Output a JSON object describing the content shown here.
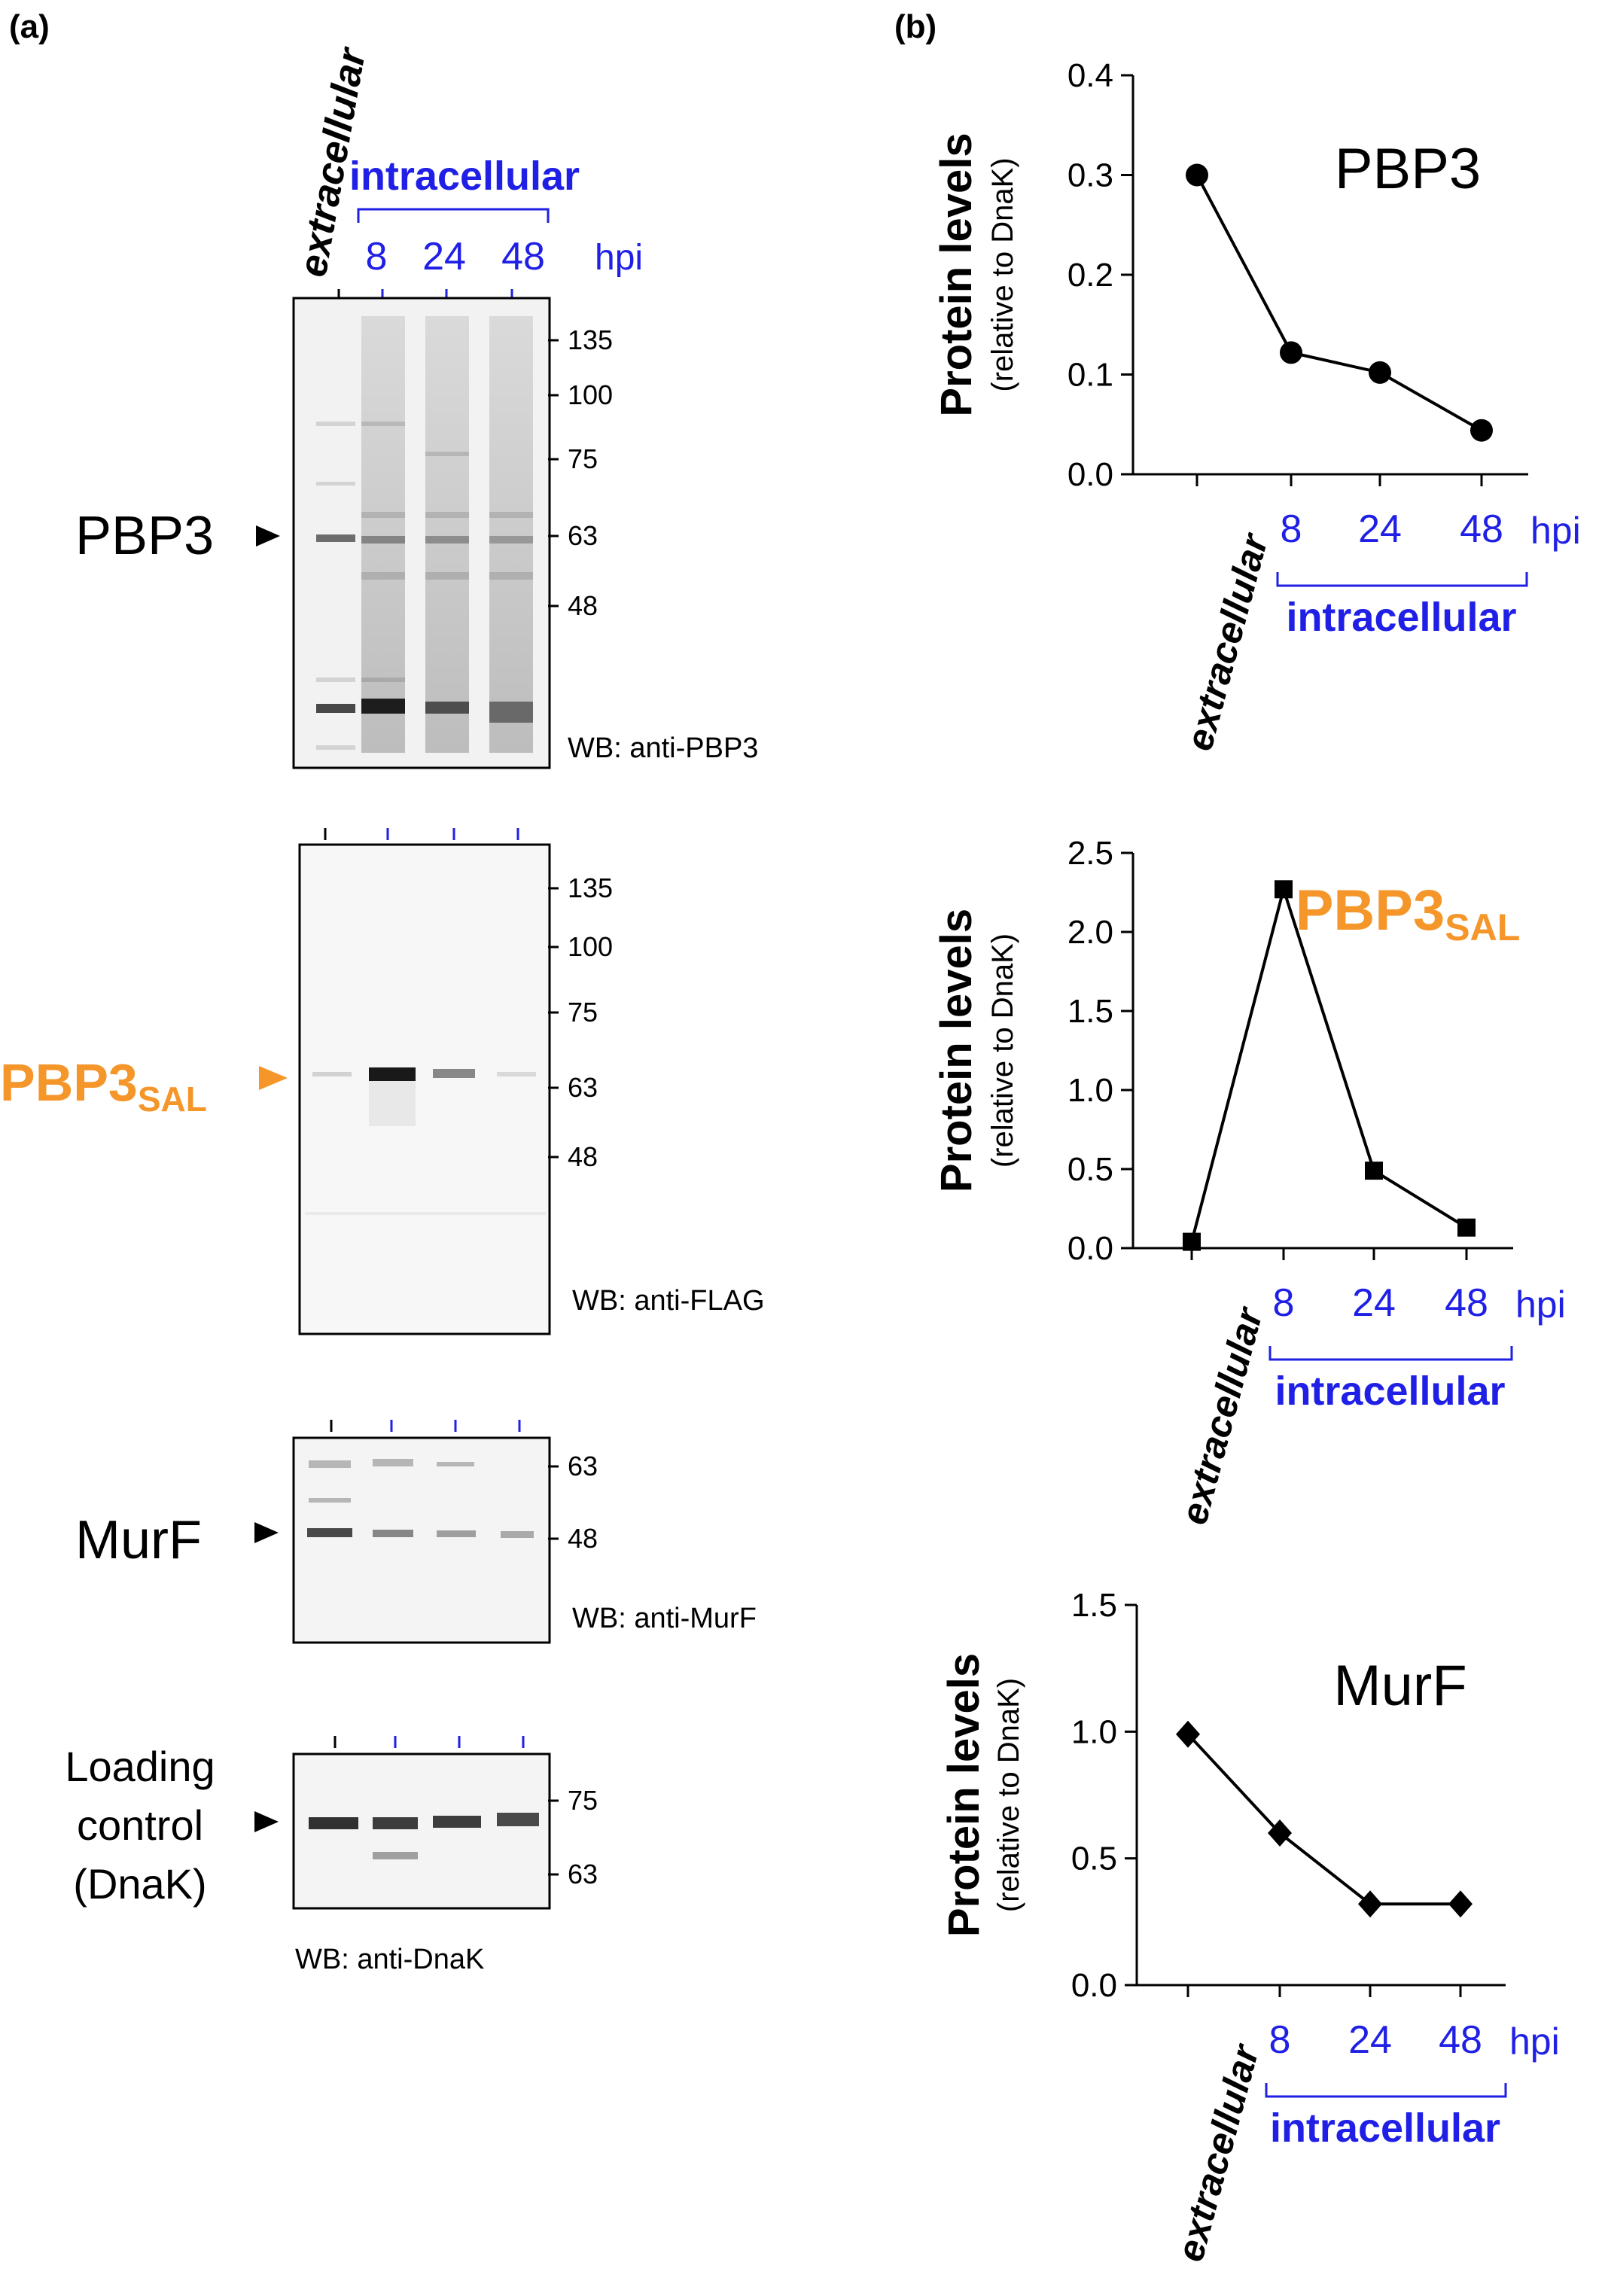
{
  "panel_a": {
    "label": "(a)",
    "header": {
      "extracellular": "extracellular",
      "intracellular": "intracellular",
      "lanes": [
        "8",
        "24",
        "48"
      ],
      "unit": "hpi"
    },
    "blots": [
      {
        "target": "PBP3",
        "target_sub": "",
        "target_color": "#000000",
        "marker_color": "#000000",
        "markers": [
          "135",
          "100",
          "75",
          "63",
          "48"
        ],
        "caption": "WB: anti-PBP3"
      },
      {
        "target": "PBP3",
        "target_sub": "SAL",
        "target_color": "#F5962A",
        "marker_color": "#F5962A",
        "markers": [
          "135",
          "100",
          "75",
          "63",
          "48"
        ],
        "caption": "WB: anti-FLAG"
      },
      {
        "target": "MurF",
        "target_sub": "",
        "target_color": "#000000",
        "marker_color": "#000000",
        "markers": [
          "63",
          "48"
        ],
        "caption": "WB: anti-MurF"
      },
      {
        "target_lines": [
          "Loading",
          "control",
          "(DnaK)"
        ],
        "target_color": "#000000",
        "marker_color": "#000000",
        "markers": [
          "75",
          "63"
        ],
        "caption": "WB: anti-DnaK"
      }
    ]
  },
  "panel_b": {
    "label": "(b)",
    "accent_blue": "#1F1FE6",
    "accent_orange": "#F5962A"
  },
  "chart_data": [
    {
      "type": "line",
      "title": "PBP3",
      "title_color": "#000000",
      "ylabel": "Protein levels",
      "ylabel_sub": "(relative to DnaK)",
      "x_categories": [
        "extracellular",
        "8",
        "24",
        "48"
      ],
      "x_unit": "hpi",
      "x_group_label": "intracellular",
      "values": [
        0.3,
        0.122,
        0.102,
        0.044
      ],
      "yticks": [
        "0.0",
        "0.1",
        "0.2",
        "0.3",
        "0.4"
      ],
      "ylim": [
        0,
        0.4
      ],
      "marker": "circle"
    },
    {
      "type": "line",
      "title": "PBP3",
      "title_sub": "SAL",
      "title_color": "#F5962A",
      "ylabel": "Protein levels",
      "ylabel_sub": "(relative to DnaK)",
      "x_categories": [
        "extracellular",
        "8",
        "24",
        "48"
      ],
      "x_unit": "hpi",
      "x_group_label": "intracellular",
      "values": [
        0.04,
        2.27,
        0.49,
        0.13
      ],
      "yticks": [
        "0.0",
        "0.5",
        "1.0",
        "1.5",
        "2.0",
        "2.5"
      ],
      "ylim": [
        0,
        2.5
      ],
      "marker": "square"
    },
    {
      "type": "line",
      "title": "MurF",
      "title_color": "#000000",
      "ylabel": "Protein levels",
      "ylabel_sub": "(relative to DnaK)",
      "x_categories": [
        "extracellular",
        "8",
        "24",
        "48"
      ],
      "x_unit": "hpi",
      "x_group_label": "intracellular",
      "values": [
        0.99,
        0.6,
        0.32,
        0.32
      ],
      "yticks": [
        "0.0",
        "0.5",
        "1.0",
        "1.5"
      ],
      "ylim": [
        0,
        1.5
      ],
      "marker": "diamond"
    }
  ]
}
